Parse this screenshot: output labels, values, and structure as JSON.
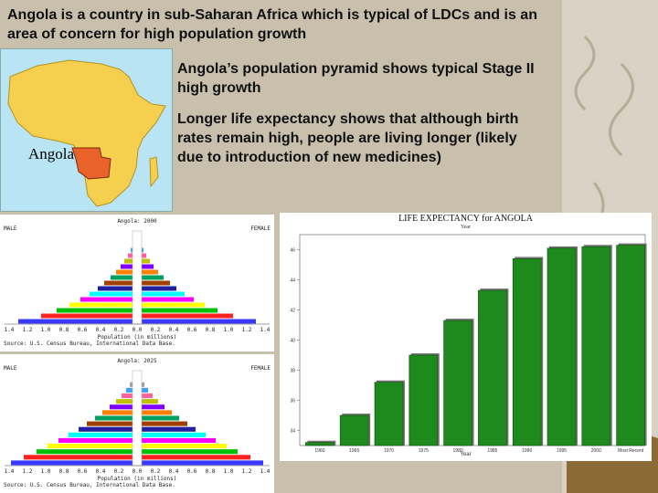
{
  "slide": {
    "title": "Angola is a country in sub-Saharan Africa which is typical of LDCs and is an area of concern for high population growth",
    "bullet1": "Angola’s population pyramid shows typical Stage II high growth",
    "bullet2": "Longer life expectancy shows that although birth rates remain high, people are living longer (likely due to introduction of new medicines)"
  },
  "map": {
    "label": "Angola",
    "colors": {
      "sea": "#b9e4f4",
      "land": "#f6cf4e",
      "highlight": "#e8622a"
    }
  },
  "pyramids": [
    {
      "heading": "Angola: 2000",
      "left_label": "MALE",
      "right_label": "FEMALE",
      "x_ticks": [
        "1.4",
        "1.2",
        "1.0",
        "0.8",
        "0.6",
        "0.4",
        "0.2",
        "0.0",
        "0.2",
        "0.4",
        "0.6",
        "0.8",
        "1.0",
        "1.2",
        "1.4"
      ],
      "x_caption": "Population (in millions)",
      "source": "Source: U.S. Census Bureau, International Data Base.",
      "bars": [
        1.3,
        1.05,
        0.88,
        0.74,
        0.62,
        0.52,
        0.43,
        0.36,
        0.29,
        0.23,
        0.18,
        0.14,
        0.1,
        0.07,
        0.05,
        0.03,
        0.02
      ]
    },
    {
      "heading": "Angola: 2025",
      "left_label": "MALE",
      "right_label": "FEMALE",
      "x_ticks": [
        "1.4",
        "1.2",
        "1.0",
        "0.8",
        "0.6",
        "0.4",
        "0.2",
        "0.0",
        "0.2",
        "0.4",
        "0.6",
        "0.8",
        "1.0",
        "1.2",
        "1.4"
      ],
      "x_caption": "Population (in millions)",
      "source": "Source: U.S. Census Bureau, International Data Base.",
      "bars": [
        1.38,
        1.24,
        1.1,
        0.98,
        0.86,
        0.75,
        0.64,
        0.55,
        0.46,
        0.38,
        0.3,
        0.23,
        0.17,
        0.12,
        0.08,
        0.05,
        0.03
      ]
    }
  ],
  "pyramid_colors": [
    "#3a3aff",
    "#ff2020",
    "#00c000",
    "#ffff00",
    "#ff00ff",
    "#00ffff",
    "#2020a0",
    "#a04000",
    "#00a060",
    "#ff8000",
    "#8000ff",
    "#c0c000",
    "#ff60a0",
    "#40a0ff",
    "#a0a0a0",
    "#606000",
    "#ff4040"
  ],
  "chart_data": {
    "type": "bar",
    "title": "LIFE EXPECTANCY for ANGOLA",
    "subtitle": "Year",
    "xlabel": "Year",
    "ylabel": "",
    "categories": [
      "1960",
      "1965",
      "1970",
      "1975",
      "1980",
      "1985",
      "1990",
      "1995",
      "2000",
      "Most Recent"
    ],
    "values": [
      33.2,
      35.0,
      37.2,
      39.0,
      41.3,
      43.3,
      45.4,
      46.1,
      46.2,
      46.3
    ],
    "yticks": [
      "34",
      "36",
      "38",
      "40",
      "42",
      "44",
      "46"
    ],
    "ylim": [
      33,
      47
    ],
    "grid": false,
    "bar_color": "#1e8a1e"
  }
}
